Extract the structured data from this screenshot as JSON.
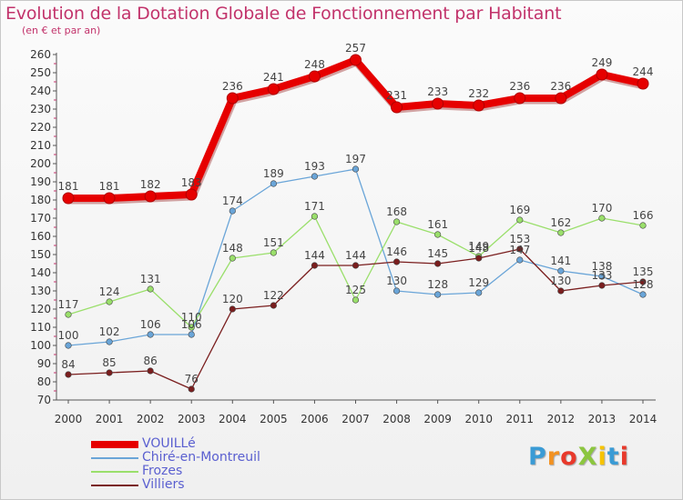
{
  "chart_data": {
    "type": "line",
    "title": "Evolution de la Dotation Globale de Fonctionnement par Habitant",
    "subtitle": "(en € et par an)",
    "x": [
      "2000",
      "2001",
      "2002",
      "2003",
      "2004",
      "2005",
      "2006",
      "2007",
      "2008",
      "2009",
      "2010",
      "2011",
      "2012",
      "2013",
      "2014"
    ],
    "ylim": [
      70,
      260
    ],
    "yticks": [
      70,
      80,
      90,
      100,
      110,
      120,
      130,
      140,
      150,
      160,
      170,
      180,
      190,
      200,
      210,
      220,
      230,
      240,
      250,
      260
    ],
    "grid": false,
    "legend_position": "bottom-left",
    "series": [
      {
        "name": "VOUILLé",
        "color": "#e60000",
        "values": [
          181,
          181,
          182,
          183,
          236,
          241,
          248,
          257,
          231,
          233,
          232,
          236,
          236,
          249,
          244
        ]
      },
      {
        "name": "Chiré-en-Montreuil",
        "color": "#6aa5d8",
        "values": [
          100,
          102,
          106,
          106,
          174,
          189,
          193,
          197,
          130,
          128,
          129,
          147,
          141,
          138,
          128
        ]
      },
      {
        "name": "Frozes",
        "color": "#9adf6b",
        "values": [
          117,
          124,
          131,
          110,
          148,
          151,
          171,
          125,
          168,
          161,
          149,
          169,
          162,
          170,
          166
        ]
      },
      {
        "name": "Villiers",
        "color": "#7a1e1e",
        "values": [
          84,
          85,
          86,
          76,
          120,
          122,
          144,
          144,
          146,
          145,
          148,
          153,
          130,
          133,
          135
        ]
      }
    ]
  },
  "logo": {
    "text": "ProXiti",
    "letter_colors": [
      "#3a9bd5",
      "#f29222",
      "#e8392b",
      "#8cc63f",
      "#f7c300",
      "#3a9bd5",
      "#e8392b"
    ]
  }
}
